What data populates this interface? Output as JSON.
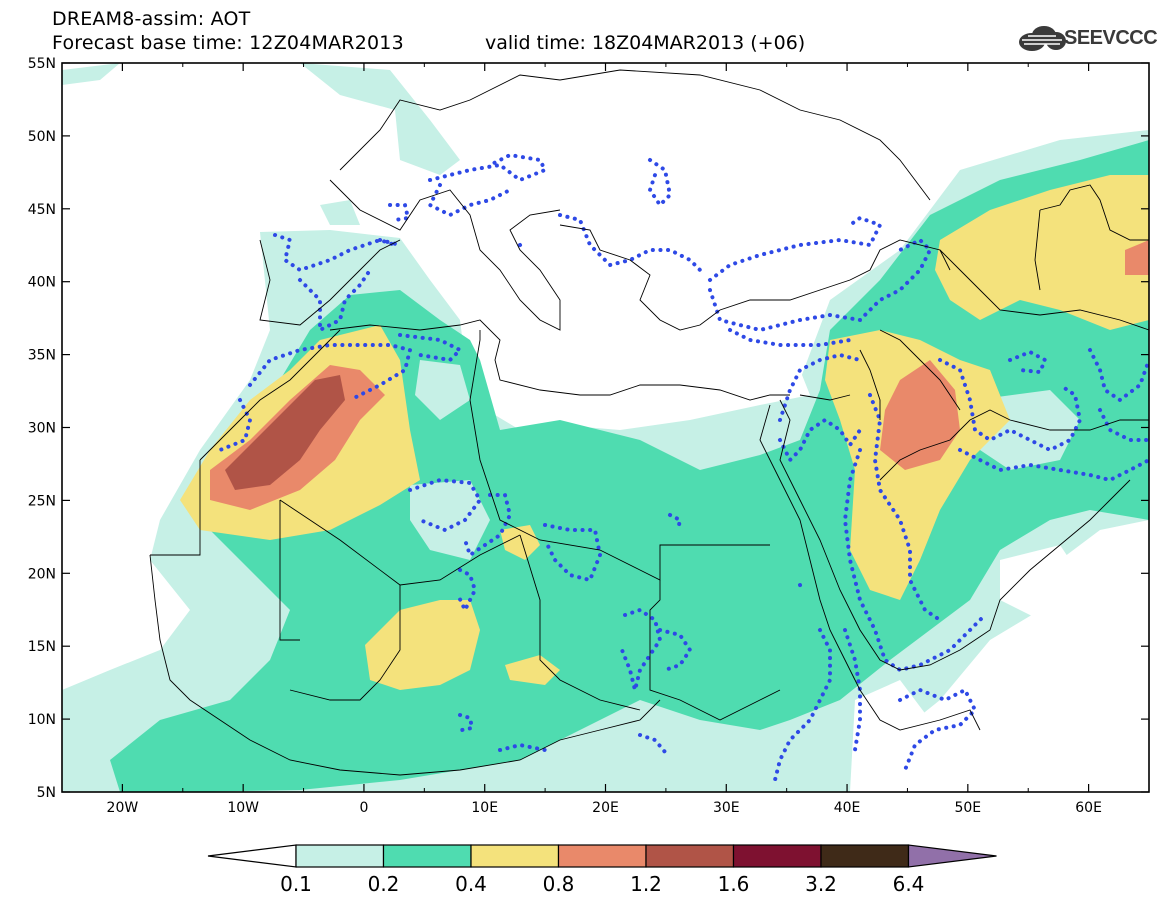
{
  "header": {
    "title_line1": "DREAM8-assim: AOT",
    "title_line2": "Forecast base time: 12Z04MAR2013",
    "valid_time": "valid time: 18Z04MAR2013 (+06)",
    "logo_text": "SEEVCCC"
  },
  "map": {
    "extent": {
      "lon_min": -25,
      "lon_max": 65,
      "lat_min": 5,
      "lat_max": 55
    },
    "lon_labels": [
      "20W",
      "10W",
      "0",
      "10E",
      "20E",
      "30E",
      "40E",
      "50E",
      "60E"
    ],
    "lat_labels": [
      "55N",
      "50N",
      "45N",
      "40N",
      "35N",
      "30N",
      "25N",
      "20N",
      "15N",
      "10N",
      "5N"
    ]
  },
  "colorbar": {
    "labels": [
      "0.1",
      "0.2",
      "0.4",
      "0.8",
      "1.2",
      "1.6",
      "3.2",
      "6.4"
    ],
    "colors": {
      "c01": "#c6f0e6",
      "c02": "#4fdcb0",
      "c04": "#f4e27c",
      "c08": "#e9896a",
      "c12": "#b05447",
      "c16": "#7e1130",
      "c32": "#3f2a18",
      "c64": "#9170a9"
    }
  },
  "overlay": {
    "color": "#2e49e6"
  }
}
